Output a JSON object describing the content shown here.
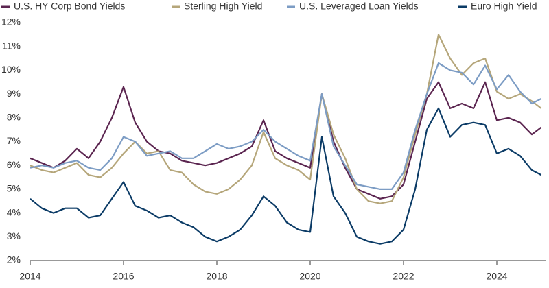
{
  "chart_data": {
    "type": "line",
    "x": [
      2014,
      2014.25,
      2014.5,
      2014.75,
      2015,
      2015.25,
      2015.5,
      2015.75,
      2016,
      2016.25,
      2016.5,
      2016.75,
      2017,
      2017.25,
      2017.5,
      2017.75,
      2018,
      2018.25,
      2018.5,
      2018.75,
      2019,
      2019.25,
      2019.5,
      2019.75,
      2020,
      2020.25,
      2020.5,
      2020.75,
      2021,
      2021.25,
      2021.5,
      2021.75,
      2022,
      2022.25,
      2022.5,
      2022.75,
      2023,
      2023.25,
      2023.5,
      2023.75,
      2024,
      2024.25,
      2024.5,
      2024.75,
      2024.95
    ],
    "series": [
      {
        "name": "U.S. HY Corp Bond Yields",
        "color": "#5b2550",
        "values": [
          6.3,
          6.1,
          5.9,
          6.2,
          6.7,
          6.3,
          7.0,
          8.0,
          9.3,
          7.8,
          7.0,
          6.6,
          6.5,
          6.2,
          6.1,
          6.0,
          6.1,
          6.3,
          6.5,
          6.8,
          7.9,
          6.6,
          6.3,
          6.1,
          5.9,
          9.0,
          7.0,
          5.9,
          5.0,
          4.8,
          4.6,
          4.7,
          5.2,
          7.0,
          8.8,
          9.5,
          8.4,
          8.6,
          8.4,
          9.5,
          7.9,
          8.0,
          7.8,
          7.3,
          7.6
        ]
      },
      {
        "name": "Sterling High Yield",
        "color": "#b5a67a",
        "values": [
          6.0,
          5.8,
          5.7,
          5.9,
          6.1,
          5.6,
          5.5,
          5.9,
          6.5,
          7.0,
          6.5,
          6.6,
          5.8,
          5.7,
          5.2,
          4.9,
          4.8,
          5.0,
          5.4,
          6.0,
          7.4,
          6.3,
          6.0,
          5.8,
          5.4,
          9.0,
          7.3,
          6.3,
          5.0,
          4.5,
          4.4,
          4.5,
          5.5,
          7.3,
          9.0,
          11.5,
          10.5,
          9.8,
          10.3,
          10.5,
          9.1,
          8.8,
          9.0,
          8.7,
          8.4
        ]
      },
      {
        "name": "U.S. Leveraged Loan Yields",
        "color": "#7c9cc4",
        "values": [
          5.9,
          6.0,
          5.9,
          6.1,
          6.2,
          5.9,
          5.8,
          6.3,
          7.2,
          7.0,
          6.4,
          6.5,
          6.6,
          6.3,
          6.3,
          6.6,
          6.9,
          6.7,
          6.8,
          7.0,
          7.5,
          7.0,
          6.7,
          6.4,
          6.2,
          9.0,
          6.8,
          6.0,
          5.2,
          5.1,
          5.0,
          5.0,
          5.7,
          7.5,
          9.0,
          10.3,
          10.0,
          9.9,
          9.4,
          10.2,
          9.2,
          9.8,
          9.1,
          8.6,
          8.8
        ]
      },
      {
        "name": "Euro High Yield",
        "color": "#0b3b66",
        "values": [
          4.6,
          4.2,
          4.0,
          4.2,
          4.2,
          3.8,
          3.9,
          4.6,
          5.3,
          4.3,
          4.1,
          3.8,
          3.9,
          3.6,
          3.4,
          3.0,
          2.8,
          3.0,
          3.3,
          3.9,
          4.7,
          4.3,
          3.6,
          3.3,
          3.2,
          7.2,
          4.7,
          4.0,
          3.0,
          2.8,
          2.7,
          2.8,
          3.3,
          5.0,
          7.5,
          8.4,
          7.2,
          7.7,
          7.8,
          7.7,
          6.5,
          6.7,
          6.4,
          5.8,
          5.6
        ]
      }
    ],
    "xlim": [
      2014,
      2025
    ],
    "xticks": [
      2014,
      2016,
      2018,
      2020,
      2022,
      2024
    ],
    "ylim": [
      2,
      12
    ],
    "yticks": [
      {
        "value": 2,
        "label": "2%"
      },
      {
        "value": 3,
        "label": "3%"
      },
      {
        "value": 4,
        "label": "4%"
      },
      {
        "value": 5,
        "label": "5%"
      },
      {
        "value": 6,
        "label": "6%"
      },
      {
        "value": 7,
        "label": "7%"
      },
      {
        "value": 8,
        "label": "8%"
      },
      {
        "value": 9,
        "label": "9%"
      },
      {
        "value": 10,
        "label": "10%"
      },
      {
        "value": 11,
        "label": "11%"
      },
      {
        "value": 12,
        "label": "12%"
      }
    ],
    "grid": false
  }
}
